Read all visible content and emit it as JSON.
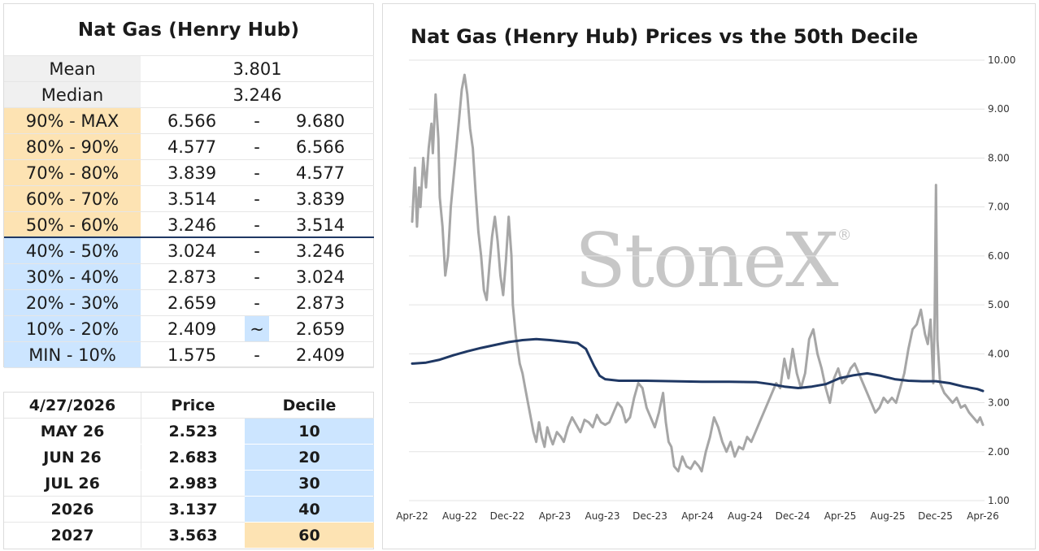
{
  "table": {
    "title": "Nat Gas (Henry Hub)",
    "mean_label": "Mean",
    "mean_value": "3.801",
    "median_label": "Median",
    "median_value": "3.246",
    "deciles": [
      {
        "label": "90% - MAX",
        "low": "6.566",
        "sep": "-",
        "high": "9.680",
        "color": "orange"
      },
      {
        "label": "80% - 90%",
        "low": "4.577",
        "sep": "-",
        "high": "6.566",
        "color": "orange"
      },
      {
        "label": "70% - 80%",
        "low": "3.839",
        "sep": "-",
        "high": "4.577",
        "color": "orange"
      },
      {
        "label": "60% - 70%",
        "low": "3.514",
        "sep": "-",
        "high": "3.839",
        "color": "orange"
      },
      {
        "label": "50% - 60%",
        "low": "3.246",
        "sep": "-",
        "high": "3.514",
        "color": "orange"
      },
      {
        "label": "40% - 50%",
        "low": "3.024",
        "sep": "-",
        "high": "3.246",
        "color": "blue"
      },
      {
        "label": "30% - 40%",
        "low": "2.873",
        "sep": "-",
        "high": "3.024",
        "color": "blue"
      },
      {
        "label": "20% - 30%",
        "low": "2.659",
        "sep": "-",
        "high": "2.873",
        "color": "blue"
      },
      {
        "label": "10% - 20%",
        "low": "2.409",
        "sep": "~",
        "high": "2.659",
        "color": "blue",
        "sep_highlight": true
      },
      {
        "label": "MIN - 10%",
        "low": "1.575",
        "sep": "-",
        "high": "2.409",
        "color": "blue"
      }
    ]
  },
  "contracts": {
    "header": {
      "date": "4/27/2026",
      "price": "Price",
      "decile": "Decile"
    },
    "rows": [
      {
        "name": "MAY 26",
        "price": "2.523",
        "decile": "10",
        "color": "blue"
      },
      {
        "name": "JUN 26",
        "price": "2.683",
        "decile": "20",
        "color": "blue"
      },
      {
        "name": "JUL 26",
        "price": "2.983",
        "decile": "30",
        "color": "blue"
      },
      {
        "name": "2026",
        "price": "3.137",
        "decile": "40",
        "color": "blue"
      },
      {
        "name": "2027",
        "price": "3.563",
        "decile": "60",
        "color": "orange"
      }
    ]
  },
  "colors": {
    "orange": "#fde3b3",
    "blue": "#cce5ff",
    "price_line": "#a6a6a6",
    "decile_line": "#1f3864"
  },
  "watermark": "StoneX",
  "chart_data": {
    "type": "line",
    "title": "Nat Gas (Henry Hub) Prices vs the 50th Decile",
    "ylim": [
      1.0,
      10.0
    ],
    "y_ticks": [
      "1.00",
      "2.00",
      "3.00",
      "4.00",
      "5.00",
      "6.00",
      "7.00",
      "8.00",
      "9.00",
      "10.00"
    ],
    "x_tick_labels": [
      "Apr-22",
      "Aug-22",
      "Dec-22",
      "Apr-23",
      "Aug-23",
      "Dec-23",
      "Apr-24",
      "Aug-24",
      "Dec-24",
      "Apr-25",
      "Aug-25",
      "Dec-25",
      "Apr-26"
    ],
    "x_unit": "months since Apr-22",
    "grid": "horizontal",
    "series": [
      {
        "color": "#a6a6a6",
        "points": [
          [
            0,
            6.7
          ],
          [
            0.2,
            7.8
          ],
          [
            0.35,
            6.6
          ],
          [
            0.5,
            7.4
          ],
          [
            0.6,
            7.0
          ],
          [
            0.8,
            8.0
          ],
          [
            1.0,
            7.4
          ],
          [
            1.2,
            8.2
          ],
          [
            1.4,
            8.7
          ],
          [
            1.5,
            8.1
          ],
          [
            1.7,
            9.3
          ],
          [
            1.9,
            8.4
          ],
          [
            2.0,
            7.2
          ],
          [
            2.2,
            6.6
          ],
          [
            2.4,
            5.6
          ],
          [
            2.6,
            6.0
          ],
          [
            2.8,
            7.0
          ],
          [
            3.0,
            7.6
          ],
          [
            3.2,
            8.2
          ],
          [
            3.4,
            8.8
          ],
          [
            3.6,
            9.4
          ],
          [
            3.8,
            9.7
          ],
          [
            4.0,
            9.3
          ],
          [
            4.2,
            8.6
          ],
          [
            4.4,
            8.2
          ],
          [
            4.6,
            7.3
          ],
          [
            4.8,
            6.5
          ],
          [
            5.0,
            6.0
          ],
          [
            5.2,
            5.3
          ],
          [
            5.4,
            5.1
          ],
          [
            5.6,
            5.8
          ],
          [
            5.8,
            6.4
          ],
          [
            6.0,
            6.8
          ],
          [
            6.2,
            6.3
          ],
          [
            6.4,
            5.6
          ],
          [
            6.6,
            5.2
          ],
          [
            6.8,
            5.9
          ],
          [
            7.0,
            6.8
          ],
          [
            7.2,
            6.0
          ],
          [
            7.3,
            5.0
          ],
          [
            7.5,
            4.4
          ],
          [
            7.8,
            3.8
          ],
          [
            8.0,
            3.6
          ],
          [
            8.2,
            3.3
          ],
          [
            8.4,
            3.0
          ],
          [
            8.6,
            2.7
          ],
          [
            8.8,
            2.4
          ],
          [
            9.0,
            2.2
          ],
          [
            9.2,
            2.6
          ],
          [
            9.4,
            2.3
          ],
          [
            9.6,
            2.1
          ],
          [
            9.8,
            2.5
          ],
          [
            10.0,
            2.3
          ],
          [
            10.2,
            2.15
          ],
          [
            10.5,
            2.4
          ],
          [
            10.8,
            2.3
          ],
          [
            11.0,
            2.2
          ],
          [
            11.3,
            2.5
          ],
          [
            11.6,
            2.7
          ],
          [
            11.9,
            2.55
          ],
          [
            12.2,
            2.4
          ],
          [
            12.5,
            2.65
          ],
          [
            12.8,
            2.6
          ],
          [
            13.1,
            2.5
          ],
          [
            13.4,
            2.75
          ],
          [
            13.7,
            2.6
          ],
          [
            14.0,
            2.55
          ],
          [
            14.3,
            2.6
          ],
          [
            14.6,
            2.8
          ],
          [
            14.9,
            3.0
          ],
          [
            15.2,
            2.9
          ],
          [
            15.5,
            2.6
          ],
          [
            15.8,
            2.7
          ],
          [
            16.1,
            3.1
          ],
          [
            16.4,
            3.4
          ],
          [
            16.7,
            3.3
          ],
          [
            17.0,
            2.9
          ],
          [
            17.3,
            2.7
          ],
          [
            17.6,
            2.5
          ],
          [
            17.9,
            2.8
          ],
          [
            18.2,
            3.2
          ],
          [
            18.4,
            2.6
          ],
          [
            18.6,
            2.2
          ],
          [
            18.8,
            2.1
          ],
          [
            19.0,
            1.7
          ],
          [
            19.3,
            1.6
          ],
          [
            19.6,
            1.9
          ],
          [
            19.9,
            1.7
          ],
          [
            20.2,
            1.65
          ],
          [
            20.5,
            1.8
          ],
          [
            20.8,
            1.7
          ],
          [
            21.0,
            1.6
          ],
          [
            21.3,
            2.0
          ],
          [
            21.6,
            2.3
          ],
          [
            21.9,
            2.7
          ],
          [
            22.2,
            2.5
          ],
          [
            22.5,
            2.2
          ],
          [
            22.8,
            2.0
          ],
          [
            23.1,
            2.2
          ],
          [
            23.4,
            1.9
          ],
          [
            23.7,
            2.1
          ],
          [
            24.0,
            2.05
          ],
          [
            24.3,
            2.3
          ],
          [
            24.6,
            2.2
          ],
          [
            24.9,
            2.4
          ],
          [
            25.2,
            2.6
          ],
          [
            25.5,
            2.8
          ],
          [
            25.8,
            3.0
          ],
          [
            26.1,
            3.2
          ],
          [
            26.4,
            3.4
          ],
          [
            26.7,
            3.3
          ],
          [
            27.0,
            3.9
          ],
          [
            27.3,
            3.5
          ],
          [
            27.6,
            4.1
          ],
          [
            27.9,
            3.6
          ],
          [
            28.2,
            3.3
          ],
          [
            28.5,
            3.6
          ],
          [
            28.8,
            4.3
          ],
          [
            29.1,
            4.5
          ],
          [
            29.4,
            4.0
          ],
          [
            29.7,
            3.7
          ],
          [
            30.0,
            3.3
          ],
          [
            30.3,
            3.0
          ],
          [
            30.6,
            3.5
          ],
          [
            30.9,
            3.7
          ],
          [
            31.2,
            3.4
          ],
          [
            31.5,
            3.5
          ],
          [
            31.8,
            3.7
          ],
          [
            32.1,
            3.8
          ],
          [
            32.4,
            3.6
          ],
          [
            32.7,
            3.4
          ],
          [
            33.0,
            3.2
          ],
          [
            33.3,
            3.0
          ],
          [
            33.6,
            2.8
          ],
          [
            33.9,
            2.9
          ],
          [
            34.2,
            3.1
          ],
          [
            34.5,
            3.0
          ],
          [
            34.8,
            3.1
          ],
          [
            35.1,
            3.0
          ],
          [
            35.4,
            3.3
          ],
          [
            35.7,
            3.6
          ],
          [
            36.0,
            4.1
          ],
          [
            36.3,
            4.5
          ],
          [
            36.6,
            4.6
          ],
          [
            36.9,
            4.9
          ],
          [
            37.2,
            4.4
          ],
          [
            37.4,
            4.2
          ],
          [
            37.6,
            4.7
          ],
          [
            37.8,
            3.4
          ],
          [
            37.9,
            4.8
          ],
          [
            38.0,
            7.45
          ],
          [
            38.1,
            4.3
          ],
          [
            38.3,
            3.4
          ],
          [
            38.6,
            3.2
          ],
          [
            38.9,
            3.1
          ],
          [
            39.2,
            3.0
          ],
          [
            39.5,
            3.1
          ],
          [
            39.8,
            2.9
          ],
          [
            40.1,
            2.95
          ],
          [
            40.4,
            2.8
          ],
          [
            40.7,
            2.7
          ],
          [
            41.0,
            2.6
          ],
          [
            41.2,
            2.7
          ],
          [
            41.4,
            2.55
          ]
        ]
      },
      {
        "color": "#1f3864",
        "points": [
          [
            0,
            3.8
          ],
          [
            1,
            3.82
          ],
          [
            2,
            3.88
          ],
          [
            3,
            3.97
          ],
          [
            4,
            4.05
          ],
          [
            5,
            4.12
          ],
          [
            6,
            4.18
          ],
          [
            7,
            4.24
          ],
          [
            8,
            4.28
          ],
          [
            9,
            4.3
          ],
          [
            10,
            4.28
          ],
          [
            11,
            4.25
          ],
          [
            12,
            4.22
          ],
          [
            12.6,
            4.1
          ],
          [
            13.2,
            3.75
          ],
          [
            13.6,
            3.55
          ],
          [
            14,
            3.48
          ],
          [
            15,
            3.45
          ],
          [
            17,
            3.45
          ],
          [
            19,
            3.44
          ],
          [
            21,
            3.43
          ],
          [
            23,
            3.43
          ],
          [
            25,
            3.42
          ],
          [
            26,
            3.38
          ],
          [
            27,
            3.33
          ],
          [
            28,
            3.3
          ],
          [
            29,
            3.33
          ],
          [
            30,
            3.38
          ],
          [
            31,
            3.5
          ],
          [
            32,
            3.56
          ],
          [
            33,
            3.6
          ],
          [
            34,
            3.55
          ],
          [
            35,
            3.48
          ],
          [
            36,
            3.45
          ],
          [
            37,
            3.44
          ],
          [
            38,
            3.44
          ],
          [
            39,
            3.4
          ],
          [
            40,
            3.33
          ],
          [
            41,
            3.28
          ],
          [
            41.4,
            3.24
          ]
        ]
      }
    ]
  }
}
